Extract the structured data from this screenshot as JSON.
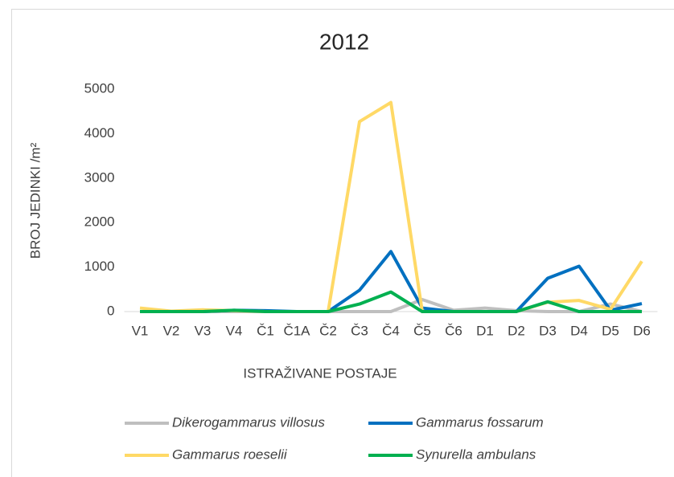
{
  "chart_data": {
    "type": "line",
    "title": "2012",
    "x_label": "ISTRAŽIVANE POSTAJE",
    "y_label": "BROJ JEDINKI /m²",
    "categories": [
      "V1",
      "V2",
      "V3",
      "V4",
      "Č1",
      "Č1A",
      "Č2",
      "Č3",
      "Č4",
      "Č5",
      "Č6",
      "D1",
      "D2",
      "D3",
      "D4",
      "D5",
      "D6"
    ],
    "series": [
      {
        "name": "Dikerogammarus villosus",
        "color": "#bfbfbf",
        "values": [
          0,
          0,
          0,
          0,
          0,
          0,
          0,
          0,
          0,
          270,
          30,
          80,
          20,
          0,
          0,
          170,
          0
        ]
      },
      {
        "name": "Gammarus fossarum",
        "color": "#0070c0",
        "values": [
          0,
          0,
          0,
          30,
          20,
          0,
          0,
          480,
          1350,
          80,
          0,
          0,
          0,
          750,
          1020,
          30,
          180
        ]
      },
      {
        "name": "Gammarus roeselii",
        "color": "#ffd966",
        "values": [
          80,
          10,
          40,
          20,
          0,
          0,
          0,
          4270,
          4700,
          0,
          0,
          0,
          0,
          210,
          250,
          50,
          1130
        ]
      },
      {
        "name": "Synurella ambulans",
        "color": "#00b050",
        "values": [
          0,
          0,
          0,
          30,
          0,
          0,
          0,
          170,
          440,
          0,
          0,
          0,
          0,
          220,
          0,
          0,
          0
        ]
      }
    ],
    "ylim": [
      0,
      5000
    ],
    "yticks": [
      0,
      1000,
      2000,
      3000,
      4000,
      5000
    ],
    "legend": "bottom"
  }
}
